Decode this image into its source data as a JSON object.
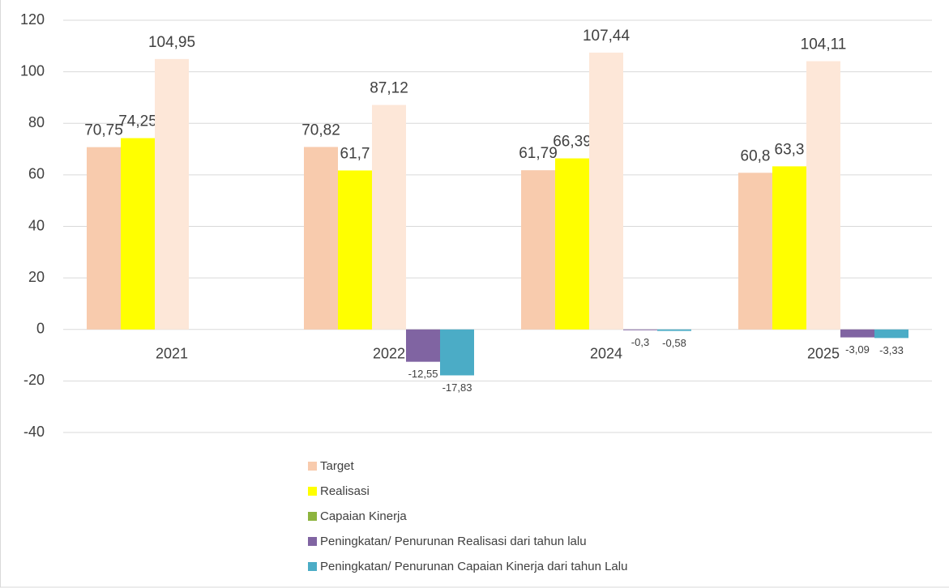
{
  "chart_data": {
    "type": "bar",
    "categories": [
      "2021",
      "2022",
      "2024",
      "2025"
    ],
    "series": [
      {
        "name": "Target",
        "color": "#F8CBAD",
        "values": [
          70.75,
          70.82,
          61.79,
          60.8
        ],
        "value_labels": [
          "70,75",
          "70,82",
          "61,79",
          "60,8"
        ]
      },
      {
        "name": "Realisasi",
        "color": "#FFFF00",
        "values": [
          74.25,
          61.7,
          66.39,
          63.3
        ],
        "value_labels": [
          "74,25",
          "61,7",
          "66,39",
          "63,3"
        ]
      },
      {
        "name": "Capaian Kinerja",
        "color": "#FDE7D8",
        "legend_color": "#8DB43E",
        "values": [
          104.95,
          87.12,
          107.44,
          104.11
        ],
        "value_labels": [
          "104,95",
          "87,12",
          "107,44",
          "104,11"
        ]
      },
      {
        "name": "Peningkatan/ Penurunan Realisasi dari tahun lalu",
        "color": "#8064A2",
        "values": [
          null,
          -12.55,
          -0.3,
          -3.09
        ],
        "value_labels": [
          null,
          "-12,55",
          "-0,3",
          "-3,09"
        ]
      },
      {
        "name": "Peningkatan/ Penurunan Capaian Kinerja dari tahun Lalu",
        "color": "#4BACC6",
        "values": [
          null,
          -17.83,
          -0.58,
          -3.33
        ],
        "value_labels": [
          null,
          "-17,83",
          "-0,58",
          "-3,33"
        ]
      }
    ],
    "ylim": [
      -40,
      120
    ],
    "yticks": [
      -40,
      -20,
      0,
      20,
      40,
      60,
      80,
      100,
      120
    ],
    "grid": true
  }
}
